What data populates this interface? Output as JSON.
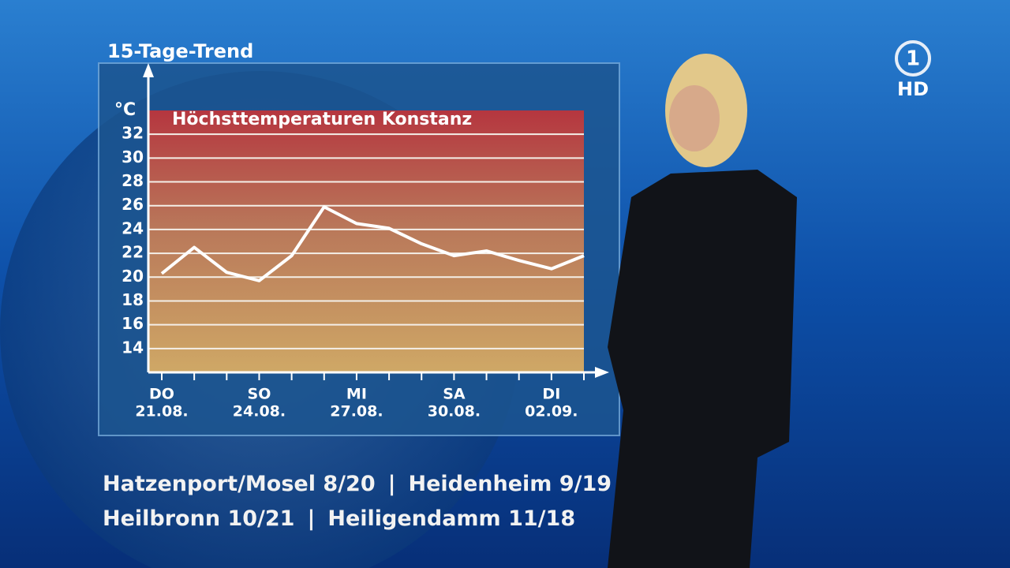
{
  "chart_data": {
    "type": "line",
    "panel_title": "15-Tage-Trend",
    "title": "Höchsttemperaturen Konstanz",
    "y_unit": "°C",
    "weekday_labels": [
      "DO",
      null,
      null,
      "SO",
      null,
      null,
      "MI",
      null,
      null,
      "SA",
      null,
      null,
      "DI",
      null
    ],
    "categories": [
      "21.08.",
      null,
      null,
      "24.08.",
      null,
      null,
      "27.08.",
      null,
      null,
      "30.08.",
      null,
      null,
      "02.09.",
      null
    ],
    "series": [
      {
        "name": "Höchsttemperatur",
        "color": "#ffffff",
        "values": [
          20.3,
          22.5,
          20.4,
          19.7,
          21.8,
          25.9,
          24.5,
          24.1,
          22.8,
          21.8,
          22.2,
          21.4,
          20.7,
          21.8
        ]
      }
    ],
    "ylim": [
      12,
      34
    ],
    "yticks": [
      14,
      16,
      18,
      20,
      22,
      24,
      26,
      28,
      30,
      32
    ],
    "grid": true
  },
  "ticker": {
    "line1": [
      "Hatzenport/Mosel 8/20",
      "|",
      "Heidenheim 9/19"
    ],
    "line2": [
      "Heilbronn 10/21",
      "|",
      "Heiligendamm 11/18"
    ]
  },
  "logo": {
    "channel": "1",
    "quality": "HD"
  }
}
